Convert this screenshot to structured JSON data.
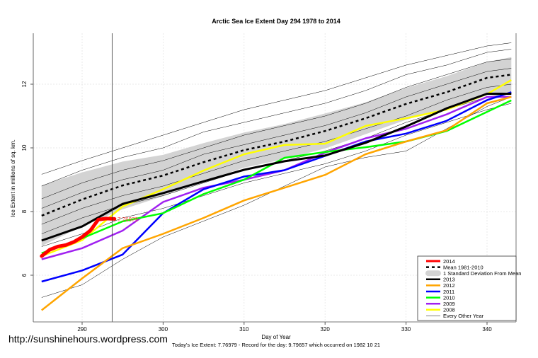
{
  "watermark": "http://sunshinehours.wordpress.com",
  "chart_data": {
    "type": "line",
    "title": "Arctic Sea Ice Extent Day 294 1978 to 2014",
    "xlabel": "Day of Year",
    "ylabel": "Ice Extent in millions of sq. km.",
    "subtitle": "Today's Ice Extent: 7.76979  - Record for the day: 9.79657 which occurred on 1982 10 21",
    "xlim": [
      284,
      344
    ],
    "ylim": [
      4.5,
      13.6
    ],
    "xticks": [
      290,
      300,
      310,
      320,
      330,
      340
    ],
    "yticks": [
      6,
      8,
      10,
      12
    ],
    "grid": true,
    "legend_position": "bottom-right",
    "current_day": 294,
    "current_value_label": "7.76979",
    "x": [
      285,
      290,
      295,
      300,
      305,
      310,
      315,
      320,
      325,
      330,
      335,
      340,
      343
    ],
    "mean": {
      "name": "Mean 1981-2010",
      "color": "#000000",
      "values": [
        7.87,
        8.38,
        8.82,
        9.13,
        9.55,
        9.93,
        10.2,
        10.53,
        10.93,
        11.38,
        11.75,
        12.2,
        12.3
      ]
    },
    "sd": {
      "name": "1 Standard Deviation From Mean",
      "color": "#d3d3d3",
      "values": [
        0.95,
        0.85,
        0.75,
        0.65,
        0.6,
        0.55,
        0.55,
        0.55,
        0.5,
        0.5,
        0.5,
        0.5,
        0.55
      ]
    },
    "series": [
      {
        "name": "2013",
        "color": "#000000",
        "values": [
          7.09,
          7.53,
          8.24,
          8.58,
          8.95,
          9.31,
          9.58,
          9.76,
          10.16,
          10.67,
          11.24,
          11.7,
          11.7
        ]
      },
      {
        "name": "2012",
        "color": "#ffa500",
        "values": [
          4.9,
          5.9,
          6.85,
          7.3,
          7.8,
          8.35,
          8.75,
          9.15,
          9.8,
          10.2,
          10.55,
          11.4,
          11.6
        ]
      },
      {
        "name": "2011",
        "color": "#0000ff",
        "values": [
          5.8,
          6.15,
          6.65,
          7.95,
          8.7,
          9.1,
          9.3,
          9.75,
          10.2,
          10.45,
          10.85,
          11.5,
          11.75
        ]
      },
      {
        "name": "2010",
        "color": "#00ff00",
        "values": [
          6.69,
          7.16,
          7.69,
          7.95,
          8.55,
          9.0,
          9.69,
          9.87,
          10.02,
          10.2,
          10.53,
          11.13,
          11.49
        ]
      },
      {
        "name": "2009",
        "color": "#a020f0",
        "values": [
          6.5,
          6.85,
          7.4,
          8.3,
          8.75,
          9.0,
          9.3,
          9.85,
          10.3,
          10.6,
          11.05,
          11.6,
          11.6
        ]
      },
      {
        "name": "2008",
        "color": "#ffff00",
        "values": [
          6.6,
          7.1,
          8.16,
          8.7,
          9.29,
          9.8,
          10.09,
          10.13,
          10.69,
          10.93,
          11.2,
          11.69,
          12.13
        ]
      }
    ],
    "current_year": {
      "name": "2014",
      "color": "#ff0000",
      "x": [
        285,
        286,
        287,
        288,
        289,
        290,
        291,
        292,
        293,
        294
      ],
      "values": [
        6.6,
        6.8,
        6.9,
        6.95,
        7.05,
        7.2,
        7.4,
        7.75,
        7.78,
        7.77
      ]
    },
    "other_years": {
      "name": "Every Other Year",
      "color": "#000000",
      "values": [
        [
          9.17,
          9.6,
          10.0,
          10.4,
          10.8,
          11.2,
          11.5,
          11.8,
          12.2,
          12.6,
          12.9,
          13.2,
          13.3
        ],
        [
          8.8,
          9.3,
          9.7,
          10.0,
          10.5,
          10.8,
          11.1,
          11.4,
          11.8,
          12.3,
          12.6,
          13.0,
          13.1
        ],
        [
          8.4,
          8.9,
          9.3,
          9.6,
          10.0,
          10.4,
          10.7,
          11.0,
          11.4,
          11.9,
          12.3,
          12.7,
          12.8
        ],
        [
          8.1,
          8.6,
          9.0,
          9.3,
          9.8,
          10.1,
          10.4,
          10.7,
          11.1,
          11.6,
          12.0,
          12.4,
          12.5
        ],
        [
          7.6,
          8.1,
          8.5,
          8.8,
          9.2,
          9.6,
          9.9,
          10.2,
          10.6,
          11.0,
          11.5,
          11.9,
          12.0
        ],
        [
          7.3,
          7.8,
          8.2,
          8.5,
          8.9,
          9.3,
          9.6,
          9.9,
          10.3,
          10.8,
          11.2,
          11.6,
          11.7
        ],
        [
          6.9,
          7.3,
          7.8,
          8.1,
          8.5,
          8.9,
          9.2,
          9.5,
          9.9,
          10.4,
          10.8,
          11.2,
          11.4
        ],
        [
          5.3,
          5.7,
          6.5,
          7.2,
          7.7,
          8.2,
          8.8,
          9.4,
          9.7,
          9.9,
          10.6,
          11.3,
          11.6
        ]
      ]
    },
    "legend": [
      "2014",
      "Mean 1981-2010",
      "1 Standard Deviation From Mean",
      "2013",
      "2012",
      "2011",
      "2010",
      "2009",
      "2008",
      "Every Other Year"
    ]
  }
}
